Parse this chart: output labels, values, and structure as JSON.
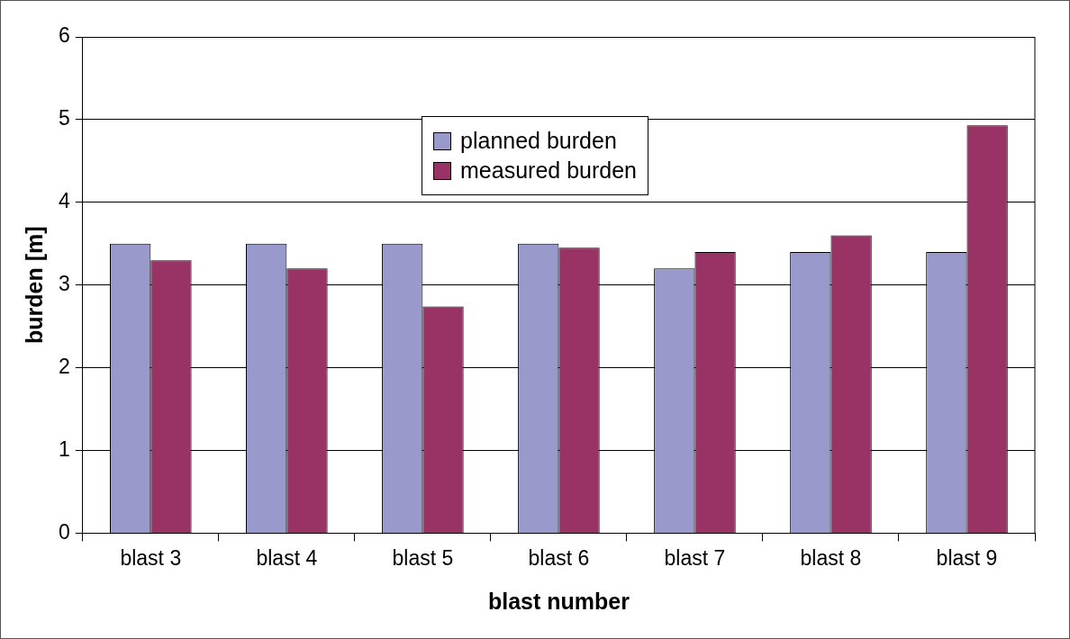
{
  "chart_data": {
    "type": "bar",
    "xlabel": "blast number",
    "ylabel": "burden [m]",
    "categories": [
      "blast 3",
      "blast 4",
      "blast 5",
      "blast 6",
      "blast 7",
      "blast 8",
      "blast 9"
    ],
    "series": [
      {
        "name": "planned burden",
        "color": "#9999cc",
        "values": [
          3.5,
          3.5,
          3.5,
          3.5,
          3.2,
          3.4,
          3.4
        ]
      },
      {
        "name": "measured burden",
        "color": "#993366",
        "values": [
          3.3,
          3.2,
          2.74,
          3.45,
          3.4,
          3.6,
          4.93
        ]
      }
    ],
    "ylim": [
      0,
      6
    ],
    "yticks": [
      0,
      1,
      2,
      3,
      4,
      5,
      6
    ],
    "grid": "y",
    "legend": "top"
  }
}
